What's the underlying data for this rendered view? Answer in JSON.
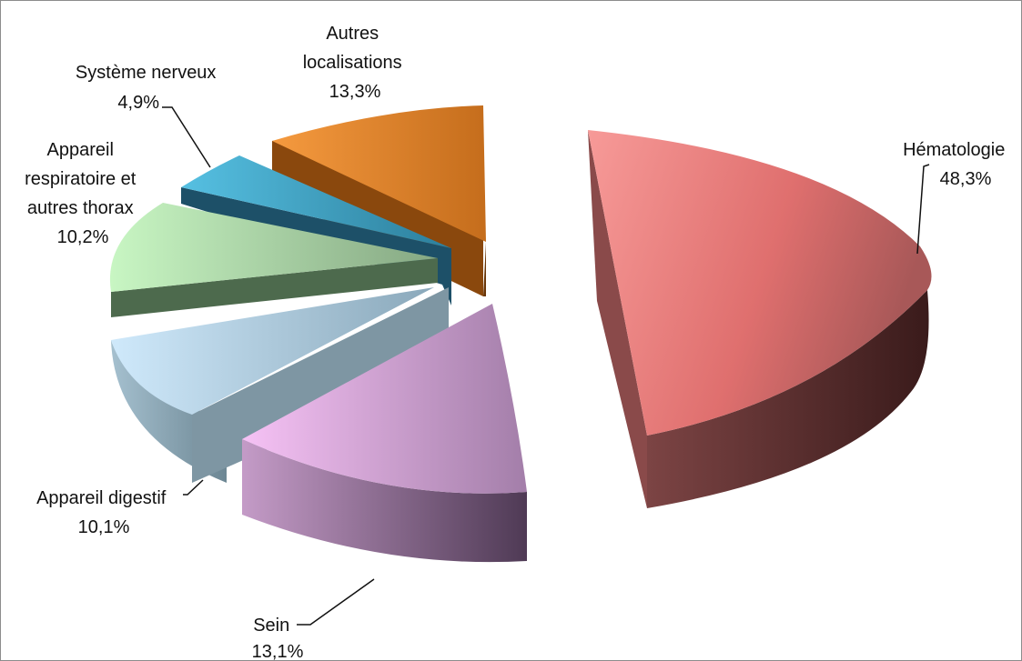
{
  "chart_data": {
    "type": "pie",
    "style": "3d-exploded",
    "title": "",
    "legend": "none",
    "slices": [
      {
        "key": "hematologie",
        "label": [
          "Hématologie"
        ],
        "value_text": "48,3%",
        "value": 48.3,
        "color": "#e77473"
      },
      {
        "key": "sein",
        "label": [
          "Sein"
        ],
        "value_text": "13,1%",
        "value": 13.1,
        "color": "#c9a0d6"
      },
      {
        "key": "digestif",
        "label": [
          "Appareil digestif"
        ],
        "value_text": "10,1%",
        "value": 10.1,
        "color": "#a9c6dc"
      },
      {
        "key": "respiratoire",
        "label": [
          "Appareil",
          "respiratoire et",
          "autres thorax"
        ],
        "value_text": "10,2%",
        "value": 10.2,
        "color": "#9fd39f"
      },
      {
        "key": "nerveux",
        "label": [
          "Système nerveux"
        ],
        "value_text": "4,9%",
        "value": 4.9,
        "color": "#3a9ec1"
      },
      {
        "key": "autres",
        "label": [
          "Autres",
          "localisations"
        ],
        "value_text": "13,3%",
        "value": 13.3,
        "color": "#e98b2c"
      }
    ]
  }
}
